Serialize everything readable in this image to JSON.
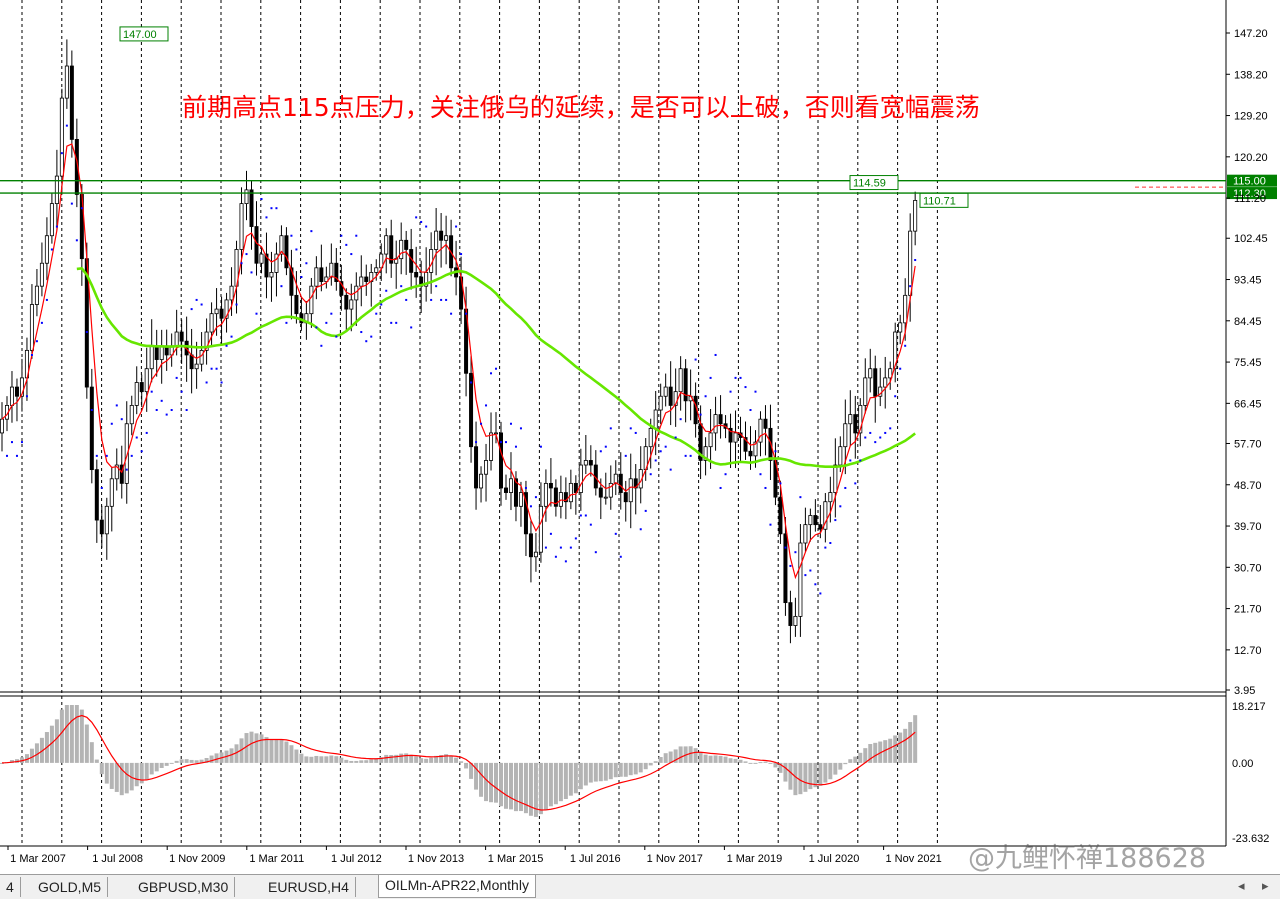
{
  "window": {
    "symbol_tab": "OILMn-APR22,Monthly"
  },
  "annotation": "前期高点115点压力，关注俄乌的延续，是否可以上破，否则看宽幅震荡",
  "watermark": "@九鲤怀禅188628",
  "tabs": [
    {
      "label": "4",
      "active": false
    },
    {
      "label": "GOLD,M5",
      "active": false
    },
    {
      "label": "GBPUSD,M30",
      "active": false
    },
    {
      "label": "EURUSD,H4",
      "active": false
    },
    {
      "label": "OILMn-APR22,Monthly",
      "active": true
    }
  ],
  "chart_data": {
    "type": "candlestick",
    "symbol": "OILMn-APR22",
    "timeframe": "Monthly",
    "price_axis": {
      "ticks": [
        "147.20",
        "138.20",
        "129.20",
        "120.20",
        "111.20",
        "102.45",
        "93.45",
        "84.45",
        "75.45",
        "66.45",
        "57.70",
        "48.70",
        "39.70",
        "30.70",
        "21.70",
        "12.70",
        "3.95"
      ],
      "ylim": [
        3.95,
        147.2
      ]
    },
    "x_axis": {
      "ticks": [
        "1 Mar 2007",
        "1 Jul 2008",
        "1 Nov 2009",
        "1 Mar 2011",
        "1 Jul 2012",
        "1 Nov 2013",
        "1 Mar 2015",
        "1 Jul 2016",
        "1 Nov 2017",
        "1 Mar 2019",
        "1 Jul 2020",
        "1 Nov 2021"
      ]
    },
    "price_labels": [
      {
        "text": "147.00",
        "value": 147.0
      },
      {
        "text": "114.59",
        "value": 114.59
      },
      {
        "text": "110.71",
        "value": 110.71
      }
    ],
    "horizontal_levels": [
      {
        "label": "115.00",
        "value": 115.0,
        "color": "#008000"
      },
      {
        "label": "112.30",
        "value": 112.3,
        "color": "#008000"
      }
    ],
    "closes": [
      63,
      66,
      70,
      68,
      72,
      78,
      88,
      92,
      97,
      103,
      110,
      116,
      133,
      140,
      124,
      112,
      98,
      70,
      52,
      41,
      38,
      44,
      50,
      53,
      49,
      62,
      66,
      71,
      69,
      74,
      79,
      76,
      79,
      77,
      79,
      82,
      80,
      77,
      74,
      75,
      78,
      82,
      86,
      87,
      85,
      89,
      92,
      100,
      110,
      113,
      105,
      97,
      99,
      94,
      95,
      99,
      103,
      96,
      90,
      86,
      84,
      86,
      92,
      96,
      93,
      94,
      97,
      93,
      90,
      87,
      89,
      92,
      94,
      93,
      95,
      96,
      99,
      103,
      97,
      98,
      102,
      100,
      95,
      94,
      92,
      95,
      100,
      104,
      102,
      103,
      96,
      94,
      87,
      73,
      57,
      48,
      51,
      54,
      60,
      60,
      48,
      47,
      50,
      44,
      47,
      38,
      33,
      34,
      44,
      49,
      48,
      44,
      47,
      45,
      49,
      47,
      53,
      54,
      53,
      48,
      46,
      46,
      49,
      51,
      47,
      45,
      50,
      48,
      52,
      57,
      61,
      65,
      68,
      70,
      66,
      69,
      74,
      67,
      68,
      62,
      54,
      57,
      60,
      64,
      62,
      61,
      58,
      60,
      59,
      56,
      55,
      58,
      63,
      61,
      54,
      46,
      38,
      23,
      18,
      20,
      36,
      40,
      42,
      40,
      39,
      45,
      47,
      53,
      57,
      62,
      64,
      60,
      66,
      72,
      74,
      68,
      70,
      72,
      74,
      82,
      84,
      90,
      104,
      110.7
    ],
    "series": [
      {
        "name": "",
        "color": "#ff0000",
        "kind": "moving-average-fast"
      },
      {
        "name": "",
        "color": "#66e600",
        "kind": "moving-average-slow"
      },
      {
        "name": "",
        "color": "#0000ff",
        "kind": "parabolic-sar-dots"
      }
    ],
    "oscillator": {
      "type": "histogram-with-signal",
      "ticks": [
        "18.217",
        "0.00",
        "-23.632"
      ],
      "ylim": [
        -23.632,
        18.217
      ],
      "histogram_color": "#b4b4b4",
      "signal_color": "#ff0000"
    },
    "grid": true
  }
}
